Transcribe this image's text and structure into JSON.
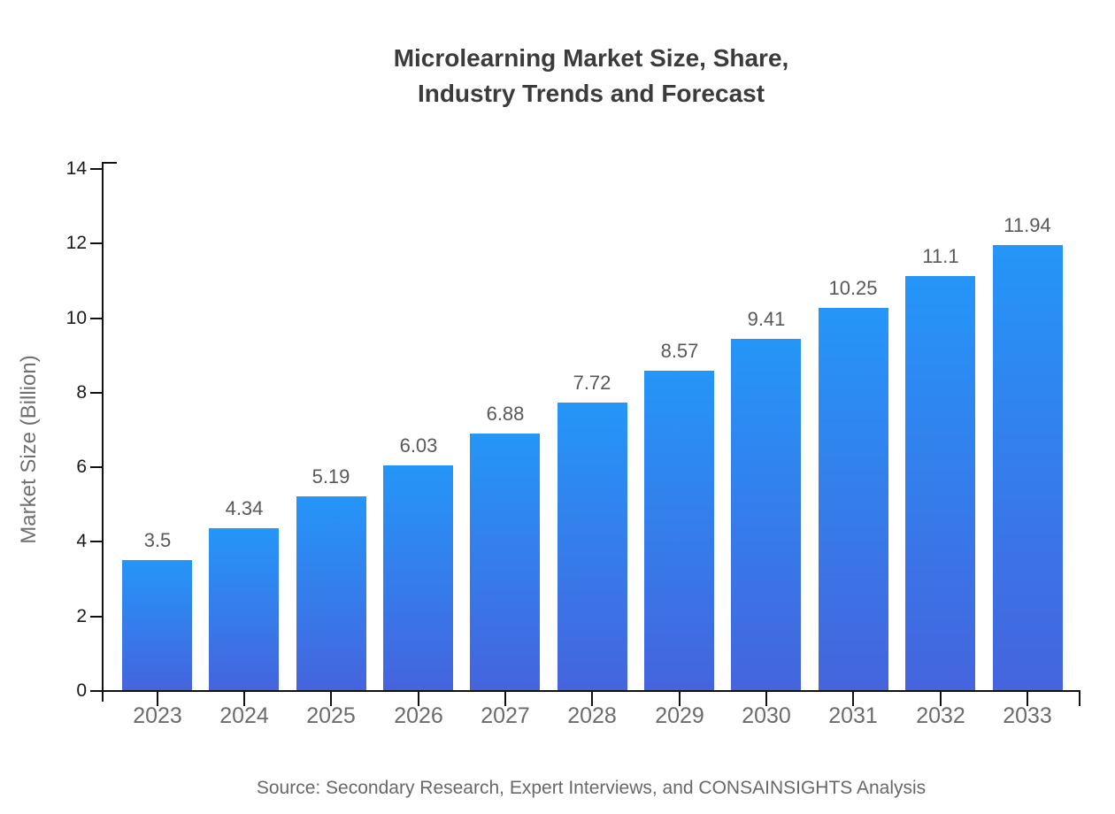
{
  "title": {
    "line1": "Microlearning Market Size, Share,",
    "line2": "Industry Trends and Forecast"
  },
  "chart_data": {
    "type": "bar",
    "title": "Microlearning Market Size, Share, Industry Trends and Forecast",
    "categories": [
      "2023",
      "2024",
      "2025",
      "2026",
      "2027",
      "2028",
      "2029",
      "2030",
      "2031",
      "2032",
      "2033"
    ],
    "values": [
      3.5,
      4.34,
      5.19,
      6.03,
      6.88,
      7.72,
      8.57,
      9.41,
      10.25,
      11.1,
      11.94
    ],
    "value_labels": [
      "3.5",
      "4.34",
      "5.19",
      "6.03",
      "6.88",
      "7.72",
      "8.57",
      "9.41",
      "10.25",
      "11.1",
      "11.94"
    ],
    "xlabel": "",
    "ylabel": "Market Size (Billion)",
    "ylim": [
      0,
      14
    ],
    "yticks": [
      0,
      2,
      4,
      6,
      8,
      10,
      12,
      14
    ],
    "grid": false,
    "legend": "none",
    "bar_color_top": "#2596F8",
    "bar_color_bottom": "#4564DE"
  },
  "source": "Source: Secondary Research, Expert Interviews, and CONSAINSIGHTS Analysis"
}
